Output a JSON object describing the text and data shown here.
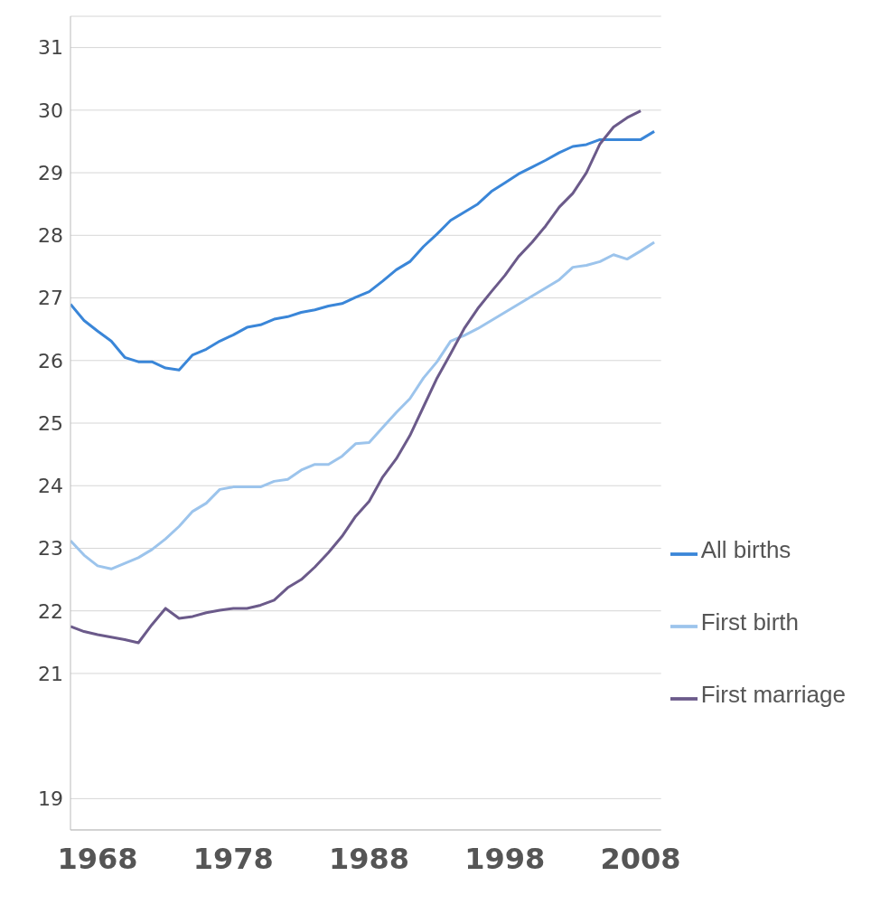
{
  "chart_data": {
    "type": "line",
    "x": [
      1966,
      1967,
      1968,
      1969,
      1970,
      1971,
      1972,
      1973,
      1974,
      1975,
      1976,
      1977,
      1978,
      1979,
      1980,
      1981,
      1982,
      1983,
      1984,
      1985,
      1986,
      1987,
      1988,
      1989,
      1990,
      1991,
      1992,
      1993,
      1994,
      1995,
      1996,
      1997,
      1998,
      1999,
      2000,
      2001,
      2002,
      2003,
      2004,
      2005,
      2006,
      2007,
      2008,
      2009
    ],
    "series": [
      {
        "name": "All births",
        "color": "#3a86d8",
        "values": [
          26.9,
          26.64,
          26.47,
          26.31,
          26.05,
          25.98,
          25.98,
          25.88,
          25.85,
          26.09,
          26.18,
          26.31,
          26.41,
          26.53,
          26.57,
          26.66,
          26.7,
          26.77,
          26.81,
          26.87,
          26.91,
          27.01,
          27.1,
          27.27,
          27.45,
          27.58,
          27.82,
          28.02,
          28.24,
          28.37,
          28.5,
          28.7,
          28.84,
          28.98,
          29.09,
          29.2,
          29.32,
          29.42,
          29.45,
          29.53,
          29.53,
          29.53,
          29.53,
          29.66
        ]
      },
      {
        "name": "First birth",
        "color": "#9cc4ec",
        "values": [
          23.12,
          22.89,
          22.72,
          22.67,
          22.76,
          22.85,
          22.98,
          23.15,
          23.35,
          23.59,
          23.72,
          23.94,
          23.98,
          23.98,
          23.98,
          24.07,
          24.1,
          24.25,
          24.34,
          24.34,
          24.47,
          24.67,
          24.69,
          24.93,
          25.17,
          25.39,
          25.72,
          25.98,
          26.31,
          26.4,
          26.51,
          26.64,
          26.77,
          26.9,
          27.03,
          27.16,
          27.29,
          27.49,
          27.52,
          27.58,
          27.69,
          27.62,
          27.75,
          27.89
        ]
      },
      {
        "name": "First marriage",
        "color": "#6b5a8a",
        "values": [
          21.75,
          21.67,
          21.62,
          21.58,
          21.54,
          21.49,
          21.78,
          22.04,
          21.88,
          21.91,
          21.97,
          22.01,
          22.04,
          22.04,
          22.09,
          22.17,
          22.37,
          22.5,
          22.7,
          22.93,
          23.19,
          23.51,
          23.75,
          24.14,
          24.43,
          24.8,
          25.26,
          25.72,
          26.11,
          26.51,
          26.83,
          27.1,
          27.36,
          27.66,
          27.89,
          28.15,
          28.45,
          28.67,
          29.0,
          29.46,
          29.73,
          29.88,
          29.99,
          null
        ]
      }
    ],
    "xlim": [
      1966,
      2009.5
    ],
    "xticks": [
      1968,
      1978,
      1988,
      1998,
      2008
    ],
    "ylim": [
      18.5,
      31.5
    ],
    "yticks": [
      19,
      21,
      22,
      23,
      24,
      25,
      26,
      27,
      28,
      29,
      30,
      31
    ],
    "grid": "y",
    "legend": "right",
    "marker": "none",
    "line_style": "solid"
  }
}
